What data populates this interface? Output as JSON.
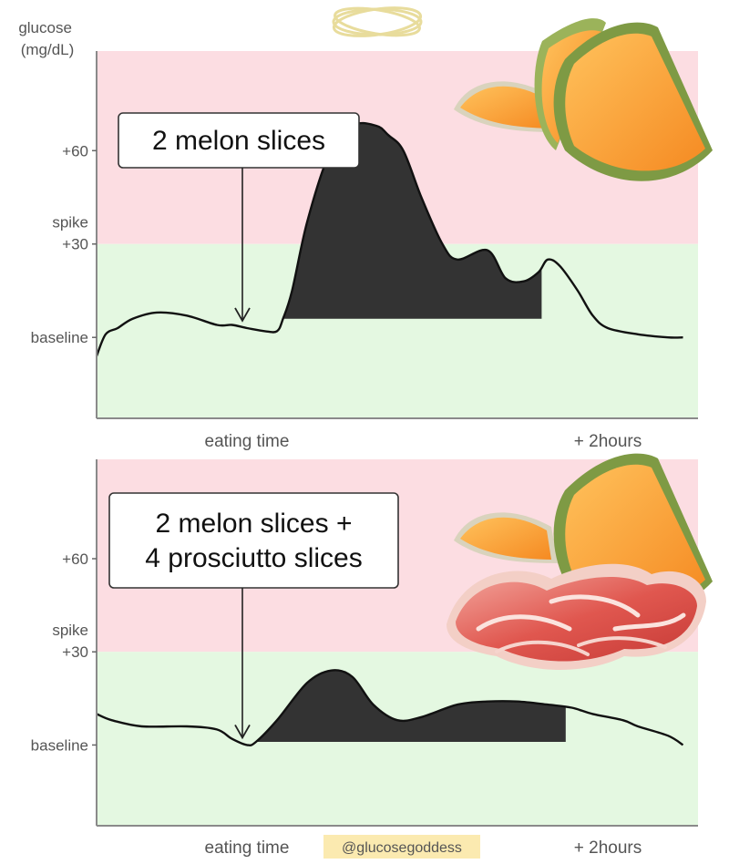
{
  "header": {
    "y_axis_title_line1": "glucose",
    "y_axis_title_line2": "(mg/dL)"
  },
  "credit": {
    "handle": "@glucosegoddess"
  },
  "colors": {
    "spike_zone": "#fcdde2",
    "safe_zone": "#e4f8e1",
    "curve": "#111111",
    "fill": "#333333",
    "frame": "#8a8a8a",
    "handle_bg": "#fbeab0",
    "halo": "#e8dc9c"
  },
  "chart_data": [
    {
      "type": "area",
      "callout": [
        "2 melon slices"
      ],
      "icons": [
        "melon-slices-icon"
      ],
      "y_tick_labels": [
        {
          "lines": [
            "+60"
          ],
          "value": 60
        },
        {
          "lines": [
            "spike",
            "+30"
          ],
          "value": 30
        },
        {
          "lines": [
            "baseline"
          ],
          "value": 0
        }
      ],
      "x_tick_labels": [
        {
          "label": "eating time",
          "value": 0
        },
        {
          "label": "+ 2hours",
          "value": 120
        }
      ],
      "xlim": [
        -50,
        150
      ],
      "ylim": [
        -26,
        92
      ],
      "spike_threshold": 30,
      "series": [
        {
          "x": [
            -50,
            -47,
            -43,
            -38,
            -30,
            -20,
            -10,
            -5,
            0,
            6,
            10,
            12,
            15,
            20,
            27,
            35,
            43,
            47,
            52,
            58,
            65,
            70,
            80,
            86,
            92,
            97,
            100,
            104,
            110,
            115,
            120,
            130,
            140,
            145
          ],
          "y": [
            -6,
            1,
            3,
            6,
            8,
            7,
            4,
            4,
            3,
            2,
            2,
            6,
            15,
            37,
            58,
            68,
            68,
            65,
            60,
            45,
            30,
            25,
            28,
            19,
            18,
            21,
            25,
            23,
            15,
            7,
            3,
            1,
            0,
            0
          ]
        }
      ],
      "shaded_interval": [
        12,
        98
      ]
    },
    {
      "type": "area",
      "callout": [
        "2 melon slices +",
        "4 prosciutto slices"
      ],
      "icons": [
        "melon-slices-icon",
        "prosciutto-icon"
      ],
      "y_tick_labels": [
        {
          "lines": [
            "+60"
          ],
          "value": 60
        },
        {
          "lines": [
            "spike",
            "+30"
          ],
          "value": 30
        },
        {
          "lines": [
            "baseline"
          ],
          "value": 0
        }
      ],
      "x_tick_labels": [
        {
          "label": "eating time",
          "value": 0
        },
        {
          "label": "+ 2hours",
          "value": 120
        }
      ],
      "xlim": [
        -50,
        150
      ],
      "ylim": [
        -26,
        92
      ],
      "spike_threshold": 30,
      "series": [
        {
          "x": [
            -50,
            -45,
            -35,
            -20,
            -10,
            -5,
            0,
            3,
            10,
            20,
            28,
            35,
            42,
            50,
            58,
            70,
            80,
            90,
            100,
            108,
            115,
            125,
            130,
            140,
            145
          ],
          "y": [
            10,
            8,
            6,
            6,
            5,
            2,
            0,
            1,
            8,
            20,
            24,
            22,
            13,
            8,
            9,
            13,
            14,
            14,
            13,
            12,
            10,
            8,
            6,
            3,
            0
          ]
        }
      ],
      "shaded_interval": [
        3,
        106
      ]
    }
  ]
}
